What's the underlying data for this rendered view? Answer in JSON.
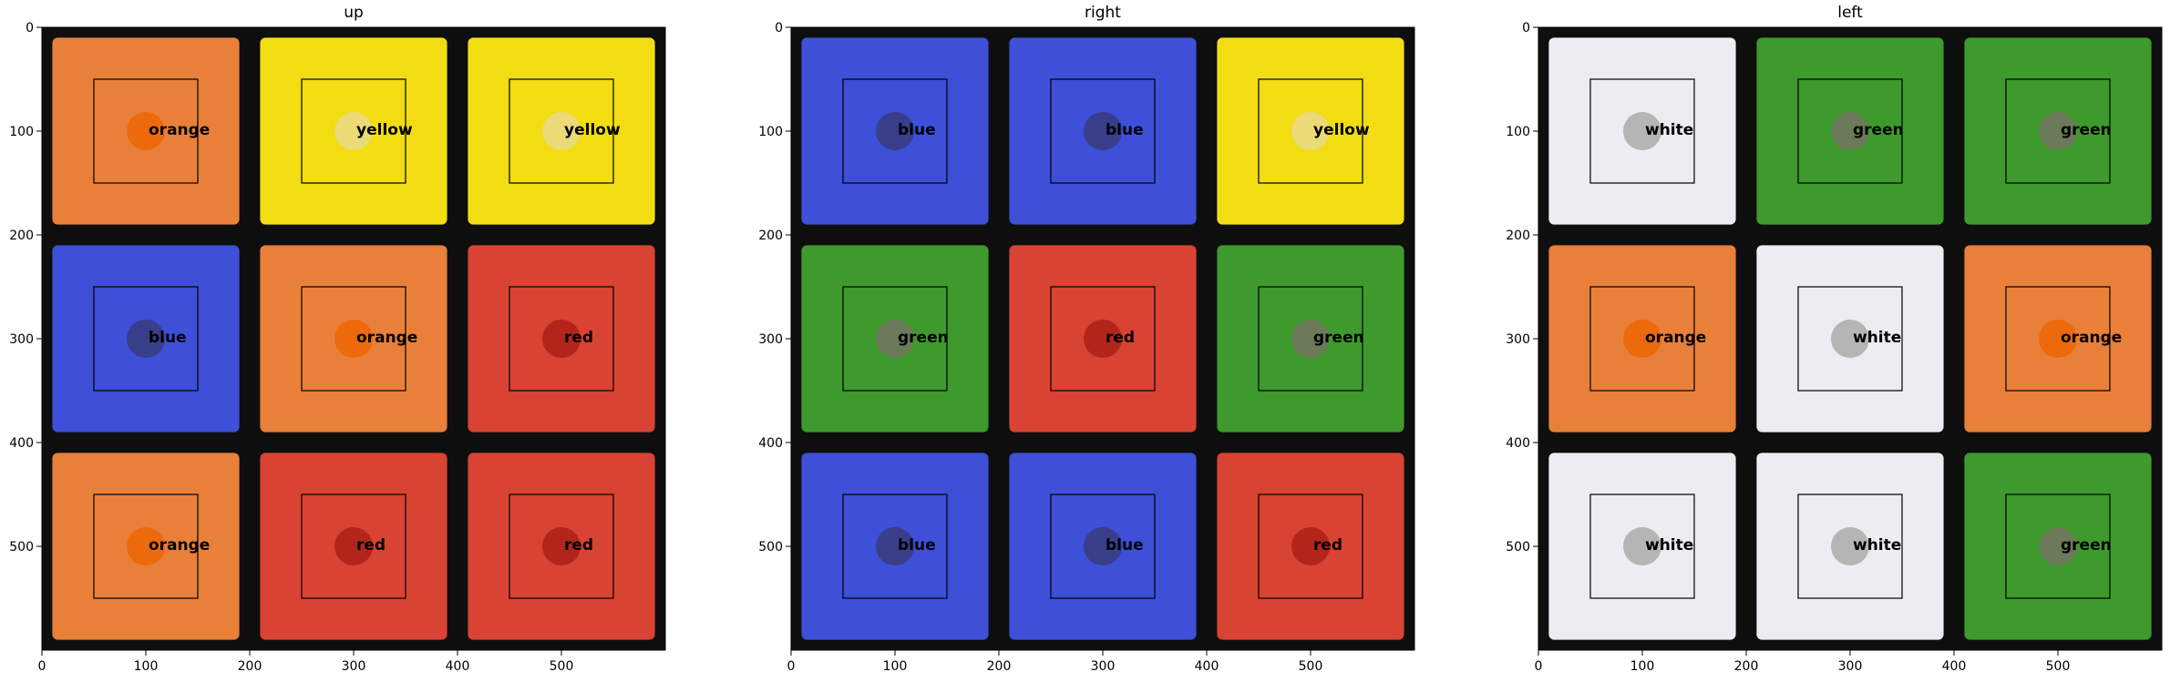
{
  "panels": [
    {
      "title": "up",
      "cells": [
        {
          "label": "orange",
          "color": "#e8803a",
          "marker": "#ec6a0c"
        },
        {
          "label": "yellow",
          "color": "#f2dd12",
          "marker": "#ecd978"
        },
        {
          "label": "yellow",
          "color": "#f2dd12",
          "marker": "#ecd978"
        },
        {
          "label": "blue",
          "color": "#3e4fd8",
          "marker": "#383e8a"
        },
        {
          "label": "orange",
          "color": "#e8803a",
          "marker": "#ec6a0c"
        },
        {
          "label": "red",
          "color": "#d94333",
          "marker": "#b3251a"
        },
        {
          "label": "orange",
          "color": "#e8803a",
          "marker": "#ec6a0c"
        },
        {
          "label": "red",
          "color": "#d94333",
          "marker": "#b3251a"
        },
        {
          "label": "red",
          "color": "#d94333",
          "marker": "#b3251a"
        }
      ]
    },
    {
      "title": "right",
      "cells": [
        {
          "label": "blue",
          "color": "#3e4fd8",
          "marker": "#383e8a"
        },
        {
          "label": "blue",
          "color": "#3e4fd8",
          "marker": "#383e8a"
        },
        {
          "label": "yellow",
          "color": "#f2dd12",
          "marker": "#ecd978"
        },
        {
          "label": "green",
          "color": "#3e9a2c",
          "marker": "#6b7a58"
        },
        {
          "label": "red",
          "color": "#d94333",
          "marker": "#b3251a"
        },
        {
          "label": "green",
          "color": "#3e9a2c",
          "marker": "#6b7a58"
        },
        {
          "label": "blue",
          "color": "#3e4fd8",
          "marker": "#383e8a"
        },
        {
          "label": "blue",
          "color": "#3e4fd8",
          "marker": "#383e8a"
        },
        {
          "label": "red",
          "color": "#d94333",
          "marker": "#b3251a"
        }
      ]
    },
    {
      "title": "left",
      "cells": [
        {
          "label": "white",
          "color": "#ececf2",
          "marker": "#b5b5b5"
        },
        {
          "label": "green",
          "color": "#3e9a2c",
          "marker": "#6b7a58"
        },
        {
          "label": "green",
          "color": "#3e9a2c",
          "marker": "#6b7a58"
        },
        {
          "label": "orange",
          "color": "#e8803a",
          "marker": "#ec6a0c"
        },
        {
          "label": "white",
          "color": "#ececf2",
          "marker": "#b5b5b5"
        },
        {
          "label": "orange",
          "color": "#e8803a",
          "marker": "#ec6a0c"
        },
        {
          "label": "white",
          "color": "#ececf2",
          "marker": "#b5b5b5"
        },
        {
          "label": "white",
          "color": "#ececf2",
          "marker": "#b5b5b5"
        },
        {
          "label": "green",
          "color": "#3e9a2c",
          "marker": "#6b7a58"
        }
      ]
    }
  ],
  "axes": {
    "range": [
      0,
      600
    ],
    "x_ticks": [
      "0",
      "100",
      "200",
      "300",
      "400",
      "500"
    ],
    "y_ticks": [
      "0",
      "100",
      "200",
      "300",
      "400",
      "500"
    ],
    "cell_centers": [
      100,
      300,
      500
    ],
    "square_half_size": 50
  },
  "colors": {
    "sticker_gap": "#0e0e0e",
    "box_stroke": "#000000"
  }
}
